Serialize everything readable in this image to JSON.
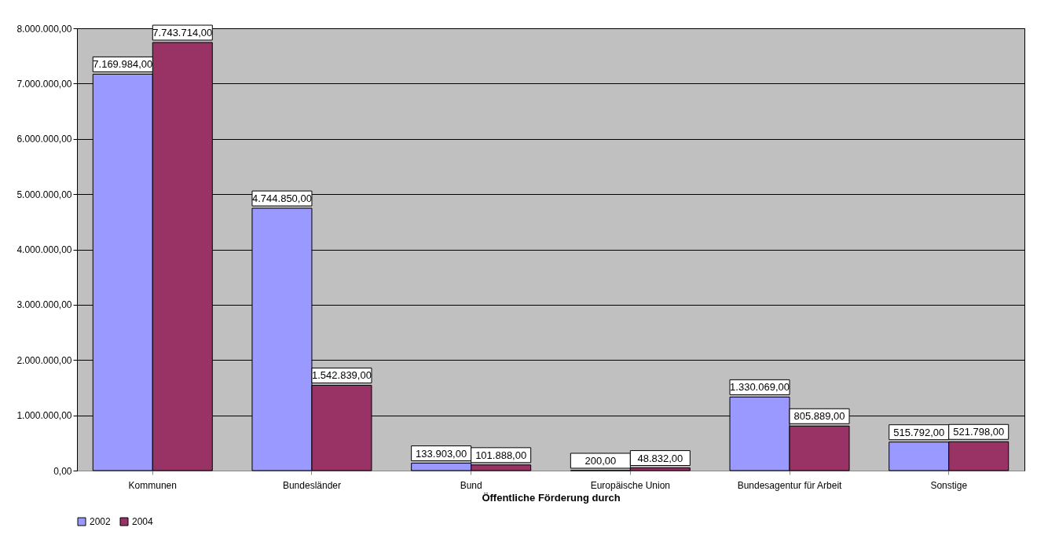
{
  "chart_data": {
    "type": "bar",
    "xlabel": "Öffentliche Förderung durch",
    "categories": [
      "Kommunen",
      "Bundesländer",
      "Bund",
      "Europäische Union",
      "Bundesagentur für Arbeit",
      "Sonstige"
    ],
    "series": [
      {
        "name": "2002",
        "color": "#9999ff",
        "values": [
          7169984,
          4744850,
          133903,
          200,
          1330069,
          515792
        ],
        "value_labels": [
          "7.169.984,00",
          "4.744.850,00",
          "133.903,00",
          "200,00",
          "1.330.069,00",
          "515.792,00"
        ]
      },
      {
        "name": "2004",
        "color": "#993366",
        "values": [
          7743714,
          1542839,
          101888,
          48832,
          805889,
          521798
        ],
        "value_labels": [
          "7.743.714,00",
          "1.542.839,00",
          "101.888,00",
          "48.832,00",
          "805.889,00",
          "521.798,00"
        ]
      }
    ],
    "ylim": [
      0,
      8000000
    ],
    "yticks": [
      {
        "value": 0,
        "label": "0,00"
      },
      {
        "value": 1000000,
        "label": "1.000.000,00"
      },
      {
        "value": 2000000,
        "label": "2.000.000,00"
      },
      {
        "value": 3000000,
        "label": "3.000.000,00"
      },
      {
        "value": 4000000,
        "label": "4.000.000,00"
      },
      {
        "value": 5000000,
        "label": "5.000.000,00"
      },
      {
        "value": 6000000,
        "label": "6.000.000,00"
      },
      {
        "value": 7000000,
        "label": "7.000.000,00"
      },
      {
        "value": 8000000,
        "label": "8.000.000,00"
      }
    ],
    "grid": "y",
    "legend": "bottom left"
  }
}
